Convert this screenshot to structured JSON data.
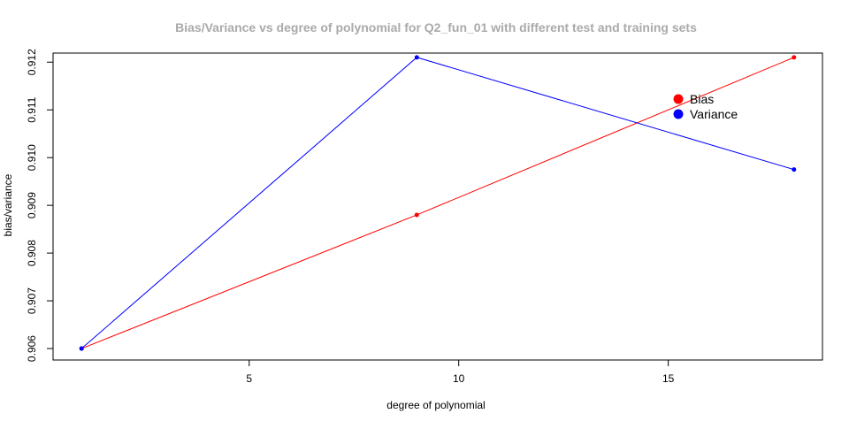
{
  "chart_data": {
    "type": "line",
    "title": "Bias/Variance vs degree of polynomial for Q2_fun_01 with different test and training sets",
    "xlabel": "degree of polynomial",
    "ylabel": "bias/variance",
    "x": [
      1,
      9,
      18
    ],
    "xticks": [
      5,
      10,
      15
    ],
    "xtick_labels": [
      "5",
      "10",
      "15"
    ],
    "yticks": [
      0.906,
      0.907,
      0.908,
      0.909,
      0.91,
      0.911,
      0.912
    ],
    "ytick_labels": [
      "0.906",
      "0.907",
      "0.908",
      "0.909",
      "0.910",
      "0.911",
      "0.912"
    ],
    "xlim": [
      0.32,
      18.68
    ],
    "ylim": [
      0.90576,
      0.91219
    ],
    "grid": false,
    "legend_position": "top-right",
    "series": [
      {
        "name": "Bias",
        "color": "#ff0000",
        "values": [
          0.906,
          0.9088,
          0.9121
        ]
      },
      {
        "name": "Variance",
        "color": "#0000ff",
        "values": [
          0.906,
          0.9121,
          0.90975
        ]
      }
    ],
    "title_color": "#aaaaaa"
  }
}
